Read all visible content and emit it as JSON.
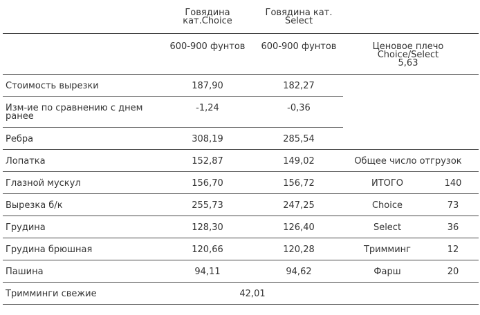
{
  "header": {
    "col_choice": [
      "Говядина",
      "кат.Choice"
    ],
    "col_select": [
      "Говядина кат.",
      "Select"
    ],
    "weight_choice": "600-900 фунтов",
    "weight_select": "600-900 фунтов",
    "spread_label": [
      "Ценовое плечо",
      "Choice/Select"
    ],
    "spread_value": "5,63"
  },
  "rows": [
    {
      "label": [
        "Стоимость вырезки"
      ],
      "choice": "187,90",
      "select": "182,27"
    },
    {
      "label": [
        "Изм-ие по сравнению с днем",
        "ранее"
      ],
      "choice": "-1,24",
      "select": "-0,36"
    },
    {
      "label": [
        "Ребра"
      ],
      "choice": "308,19",
      "select": "285,54"
    },
    {
      "label": [
        "Лопатка"
      ],
      "choice": "152,87",
      "select": "149,02"
    },
    {
      "label": [
        "Глазной мускул"
      ],
      "choice": "156,70",
      "select": "156,72"
    },
    {
      "label": [
        "Вырезка б/к"
      ],
      "choice": "255,73",
      "select": "247,25"
    },
    {
      "label": [
        "Грудина"
      ],
      "choice": "128,30",
      "select": "126,40"
    },
    {
      "label": [
        "Грудина брюшная"
      ],
      "choice": "120,66",
      "select": "120,28"
    },
    {
      "label": [
        "Пашина"
      ],
      "choice": "94,11",
      "select": "94,62"
    }
  ],
  "trimmings": {
    "label": "Тримминги свежие",
    "value": "42,01"
  },
  "shipments": {
    "title": "Общее число отгрузок",
    "items": [
      {
        "name": "ИТОГО",
        "value": "140"
      },
      {
        "name": "Choice",
        "value": "73"
      },
      {
        "name": "Select",
        "value": "36"
      },
      {
        "name": "Тримминг",
        "value": "12"
      },
      {
        "name": "Фарш",
        "value": "20"
      }
    ]
  }
}
